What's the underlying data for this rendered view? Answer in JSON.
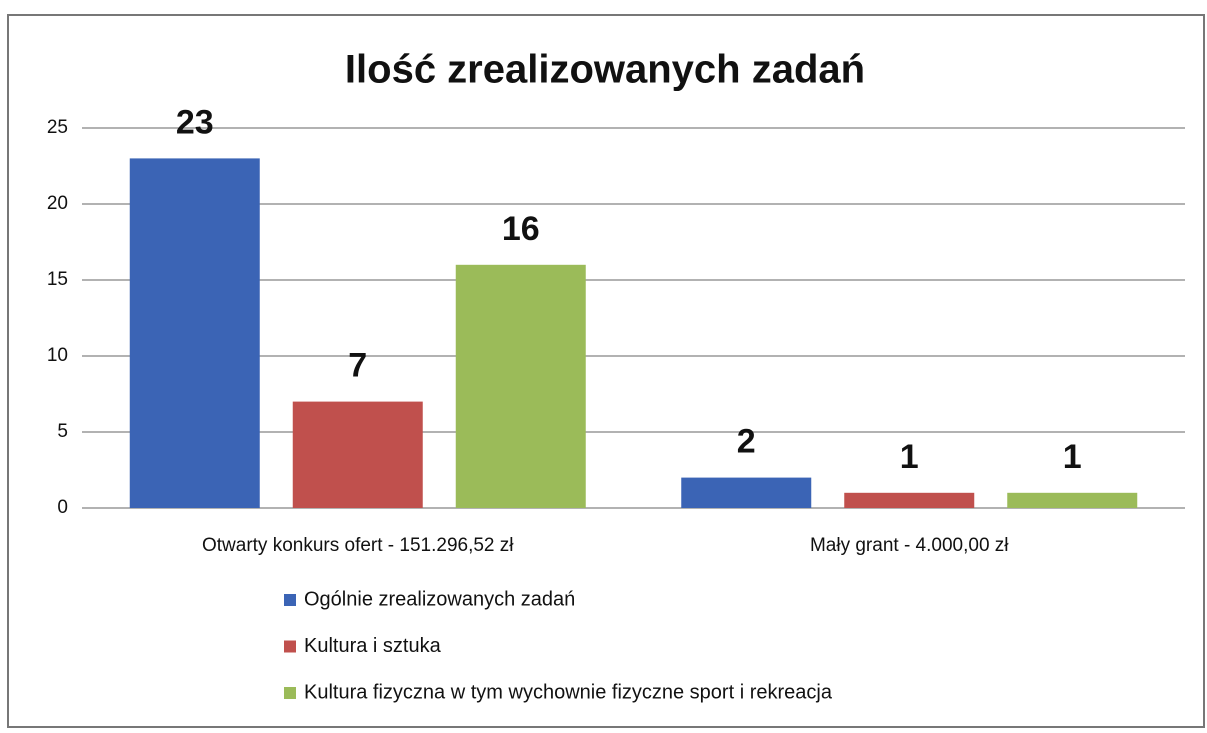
{
  "chart_data": {
    "type": "bar",
    "title": "Ilość zrealizowanych zadań",
    "categories": [
      "Otwarty konkurs ofert - 151.296,52 zł",
      "Mały grant - 4.000,00 zł"
    ],
    "series": [
      {
        "name": "Ogólnie zrealizowanych zadań",
        "color": "#3b64b5",
        "values": [
          23,
          2
        ]
      },
      {
        "name": "Kultura i sztuka",
        "color": "#c0504d",
        "values": [
          7,
          1
        ]
      },
      {
        "name": "Kultura fizyczna w tym wychownie fizyczne sport i rekreacja",
        "color": "#9bbb59",
        "values": [
          16,
          1
        ]
      }
    ],
    "ylim": [
      0,
      25
    ],
    "yticks": [
      0,
      5,
      10,
      15,
      20,
      25
    ],
    "grid": true,
    "legend": "bottom"
  }
}
